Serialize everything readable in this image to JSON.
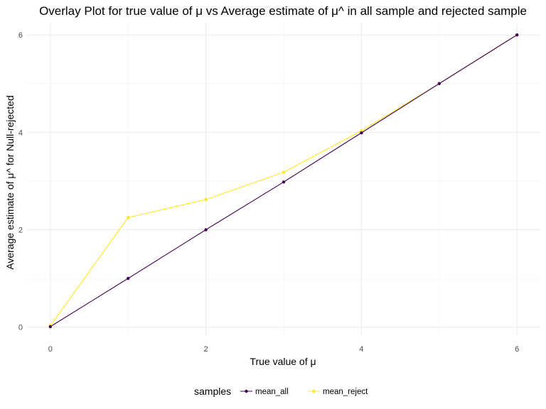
{
  "chart_data": {
    "type": "line",
    "title": "Overlay Plot for true value of μ vs Average estimate of μ^ in all sample and rejected sample",
    "xlabel": "True value of μ",
    "ylabel": "Average estimate of μ^ for Null-rejected",
    "xlim": [
      -0.3,
      6.3
    ],
    "ylim": [
      -0.15,
      6.25
    ],
    "x_ticks": [
      0,
      2,
      4,
      6
    ],
    "y_ticks": [
      0,
      2,
      4,
      6
    ],
    "x_tick_labels": [
      "0",
      "2",
      "4",
      "6"
    ],
    "y_tick_labels": [
      "0",
      "2",
      "4",
      "6"
    ],
    "grid": true,
    "legend": {
      "title": "samples",
      "position": "bottom"
    },
    "x": [
      0,
      1,
      2,
      3,
      4,
      5,
      6
    ],
    "series": [
      {
        "name": "mean_reject",
        "color": "#fde725",
        "values": [
          0.03,
          2.25,
          2.62,
          3.18,
          4.03,
          5.0,
          6.0
        ]
      },
      {
        "name": "mean_all",
        "color": "#440154",
        "values": [
          0.01,
          1.0,
          2.0,
          2.98,
          3.99,
          5.0,
          6.0
        ]
      }
    ]
  }
}
